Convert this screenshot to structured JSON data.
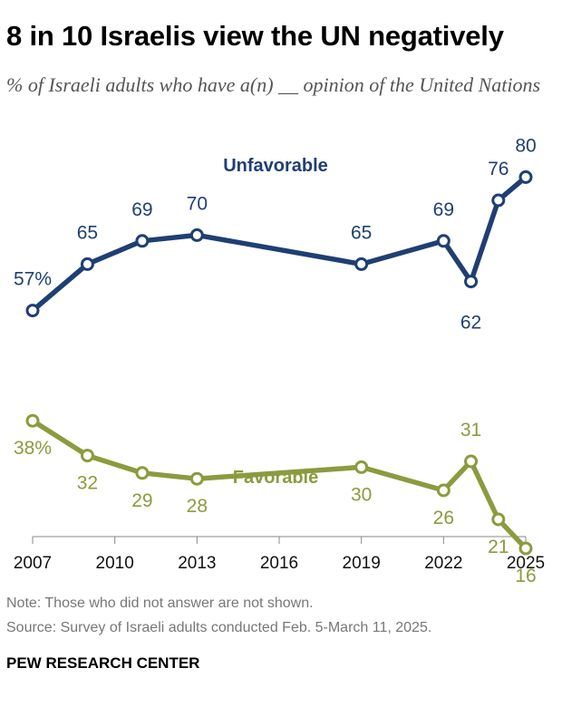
{
  "title": "8 in 10 Israelis view the UN negatively",
  "subtitle": "% of Israeli adults who have a(n) __ opinion of the United Nations",
  "note": "Note: Those who did not answer are not shown.",
  "source": "Source: Survey of Israeli adults conducted Feb. 5-March 11, 2025.",
  "brand": "PEW RESEARCH CENTER",
  "chart_data": {
    "type": "line",
    "x_ticks": [
      "2007",
      "2010",
      "2013",
      "2016",
      "2019",
      "2022",
      "2025"
    ],
    "xlim": [
      2007,
      2025
    ],
    "series": [
      {
        "name": "Unfavorable",
        "color": "#1f3f73",
        "x": [
          2007,
          2009,
          2011,
          2013,
          2019,
          2022,
          2023,
          2024,
          2025
        ],
        "values": [
          57,
          65,
          69,
          70,
          65,
          69,
          62,
          76,
          80
        ],
        "labels": [
          "57%",
          "65",
          "69",
          "70",
          "65",
          "69",
          "62",
          "76",
          "80"
        ]
      },
      {
        "name": "Favorable",
        "color": "#8b9b3e",
        "x": [
          2007,
          2009,
          2011,
          2013,
          2019,
          2022,
          2023,
          2024,
          2025
        ],
        "values": [
          38,
          32,
          29,
          28,
          30,
          26,
          31,
          21,
          16
        ],
        "labels": [
          "38%",
          "32",
          "29",
          "28",
          "30",
          "26",
          "31",
          "21",
          "16"
        ]
      }
    ],
    "grid": false,
    "legend": "inline"
  }
}
